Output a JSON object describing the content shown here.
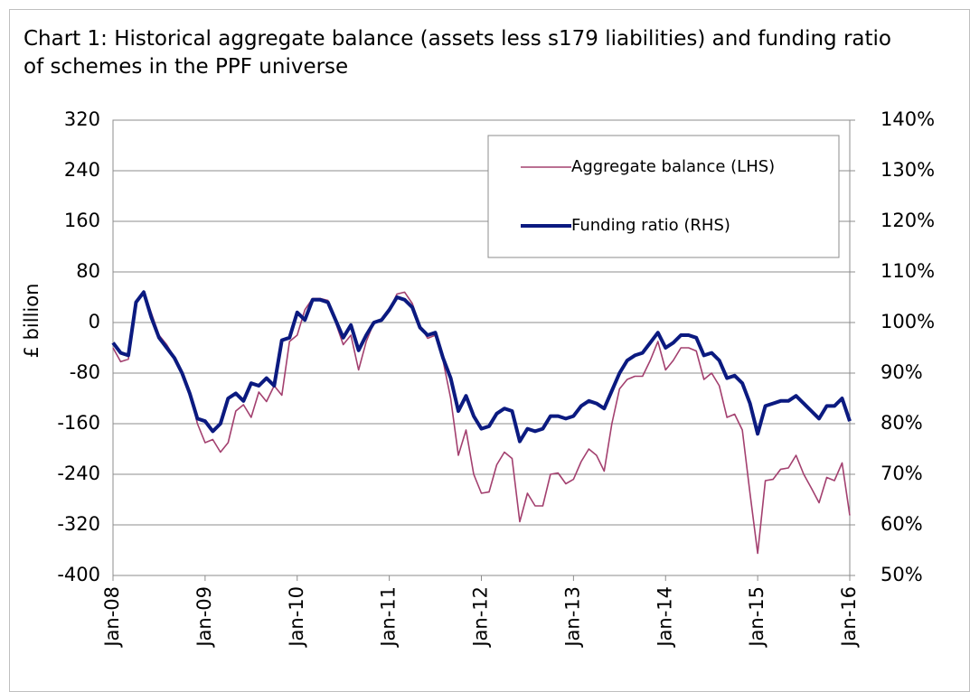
{
  "chart_data": {
    "type": "line",
    "title": "Chart 1: Historical aggregate balance (assets less s179 liabilities) and funding ratio of schemes in the PPF universe",
    "y_label": "£ billion",
    "categories": [
      "Jan-08",
      null,
      null,
      null,
      null,
      null,
      null,
      null,
      null,
      null,
      null,
      null,
      "Jan-09",
      null,
      null,
      null,
      null,
      null,
      null,
      null,
      null,
      null,
      null,
      null,
      "Jan-10",
      null,
      null,
      null,
      null,
      null,
      null,
      null,
      null,
      null,
      null,
      null,
      "Jan-11",
      null,
      null,
      null,
      null,
      null,
      null,
      null,
      null,
      null,
      null,
      null,
      "Jan-12",
      null,
      null,
      null,
      null,
      null,
      null,
      null,
      null,
      null,
      null,
      null,
      "Jan-13",
      null,
      null,
      null,
      null,
      null,
      null,
      null,
      null,
      null,
      null,
      null,
      "Jan-14",
      null,
      null,
      null,
      null,
      null,
      null,
      null,
      null,
      null,
      null,
      null,
      "Jan-15",
      null,
      null,
      null,
      null,
      null,
      null,
      null,
      null,
      null,
      null,
      null,
      "Jan-16"
    ],
    "ylim": [
      -400,
      320
    ],
    "yticks": [
      -400,
      -320,
      -240,
      -160,
      -80,
      0,
      80,
      160,
      240,
      320
    ],
    "y2lim": [
      50,
      140
    ],
    "y2ticks": [
      {
        "value": 50,
        "label": "50%"
      },
      {
        "value": 60,
        "label": "60%"
      },
      {
        "value": 70,
        "label": "70%"
      },
      {
        "value": 80,
        "label": "80%"
      },
      {
        "value": 90,
        "label": "90%"
      },
      {
        "value": 100,
        "label": "100%"
      },
      {
        "value": 110,
        "label": "110%"
      },
      {
        "value": 120,
        "label": "120%"
      },
      {
        "value": 130,
        "label": "130%"
      },
      {
        "value": 140,
        "label": "140%"
      }
    ],
    "grid": true,
    "legend": "top-right",
    "series": [
      {
        "name": "Aggregate balance (LHS)",
        "color": "#a3406f",
        "width": 1.6,
        "axis": "y",
        "values": [
          -40,
          -62,
          -58,
          30,
          50,
          15,
          -20,
          -35,
          -55,
          -80,
          -110,
          -160,
          -190,
          -185,
          -205,
          -190,
          -140,
          -130,
          -150,
          -110,
          -125,
          -100,
          -115,
          -30,
          -20,
          20,
          38,
          38,
          35,
          0,
          -35,
          -20,
          -75,
          -30,
          0,
          5,
          20,
          45,
          48,
          30,
          -5,
          -25,
          -20,
          -60,
          -120,
          -210,
          -170,
          -240,
          -270,
          -268,
          -225,
          -205,
          -215,
          -315,
          -270,
          -290,
          -290,
          -240,
          -238,
          -255,
          -248,
          -220,
          -200,
          -210,
          -235,
          -160,
          -105,
          -90,
          -85,
          -85,
          -60,
          -30,
          -75,
          -60,
          -40,
          -40,
          -45,
          -90,
          -80,
          -100,
          -150,
          -145,
          -170,
          -270,
          -365,
          -250,
          -248,
          -232,
          -230,
          -210,
          -240,
          -262,
          -285,
          -245,
          -250,
          -222,
          -305
        ]
      },
      {
        "name": "Funding ratio (RHS)",
        "color": "#0b1a80",
        "width": 4,
        "axis": "y2",
        "values": [
          96,
          94,
          93.5,
          104,
          106,
          101,
          97,
          95,
          93,
          90,
          86,
          81,
          80.5,
          78.5,
          80,
          85,
          86,
          84.5,
          88,
          87.5,
          89,
          87.5,
          96.5,
          97,
          102,
          100.5,
          104.5,
          104.5,
          104,
          100.5,
          97,
          99.5,
          94.5,
          97.5,
          100,
          100.5,
          102.5,
          105,
          104.5,
          103,
          99,
          97.5,
          98,
          93,
          89,
          82.5,
          85.5,
          81.5,
          79,
          79.5,
          82,
          83,
          82.5,
          76.5,
          79,
          78.5,
          79,
          81.5,
          81.5,
          81,
          81.5,
          83.5,
          84.5,
          84,
          83,
          86.5,
          90,
          92.5,
          93.5,
          94,
          96,
          98,
          95,
          96,
          97.5,
          97.5,
          97,
          93.5,
          94,
          92.5,
          89,
          89.5,
          88,
          84,
          78,
          83.5,
          84,
          84.5,
          84.5,
          85.5,
          84,
          82.5,
          81,
          83.5,
          83.5,
          85,
          80.5
        ]
      }
    ]
  }
}
